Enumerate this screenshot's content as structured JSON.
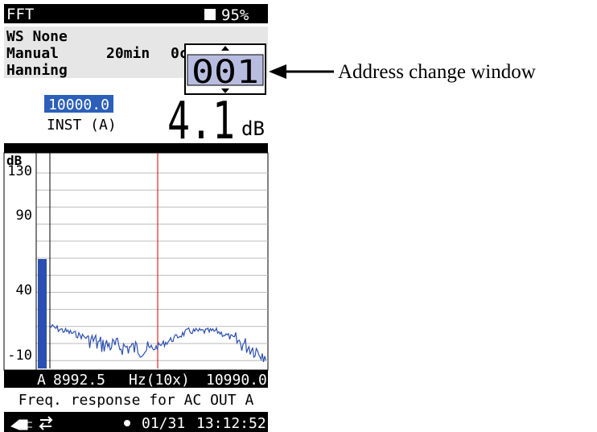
{
  "status_bar": {
    "mode": "FFT",
    "battery": "95%"
  },
  "settings": {
    "weighting": "WS None",
    "mode": "Manual",
    "interval": "20min",
    "extra": "0c",
    "window": "Hanning"
  },
  "address_window": {
    "value": "001"
  },
  "level": {
    "frequency": "10000.0",
    "type": "INST (A)",
    "value": "4.1",
    "unit": "dB"
  },
  "graph": {
    "y_unit": "dB",
    "y_labels": [
      "130",
      "90",
      "40",
      "-10"
    ]
  },
  "cursor_bar": {
    "channel": "A",
    "frequency": "8992.5",
    "unit": "Hz(10x)",
    "end": "10990.0"
  },
  "caption": "Freq. response for AC OUT A",
  "bottom_bar": {
    "date": "01/31",
    "time": "13:12:52"
  },
  "annotation": "Address change window"
}
